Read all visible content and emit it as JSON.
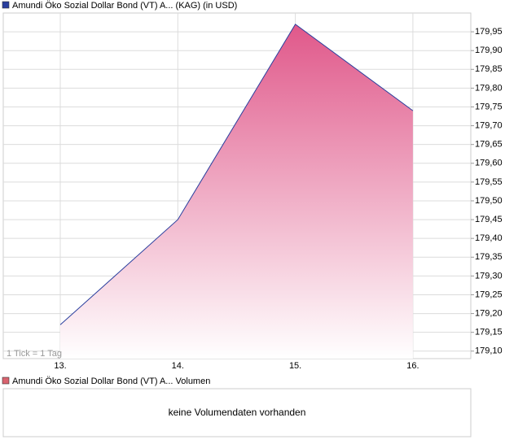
{
  "chart_data": {
    "type": "area",
    "legend": "Amundi Öko Sozial Dollar Bond (VT) A... (KAG) (in USD)",
    "legend_color": "#2a3f9e",
    "note": "1 Tick = 1 Tag",
    "categories": [
      "13.",
      "14.",
      "15.",
      "16."
    ],
    "series": [
      {
        "name": "Amundi Öko Sozial Dollar Bond (VT) A... (KAG) (in USD)",
        "color": "#2a3f9e",
        "fill": "#e0588a",
        "values": [
          179.17,
          179.45,
          179.97,
          179.74
        ]
      }
    ],
    "ylim": [
      179.08,
      180.0
    ],
    "yticks": [
      {
        "value": 179.1,
        "label": "179,10"
      },
      {
        "value": 179.15,
        "label": "179,15"
      },
      {
        "value": 179.2,
        "label": "179,20"
      },
      {
        "value": 179.25,
        "label": "179,25"
      },
      {
        "value": 179.3,
        "label": "179,30"
      },
      {
        "value": 179.35,
        "label": "179,35"
      },
      {
        "value": 179.4,
        "label": "179,40"
      },
      {
        "value": 179.45,
        "label": "179,45"
      },
      {
        "value": 179.5,
        "label": "179,50"
      },
      {
        "value": 179.55,
        "label": "179,55"
      },
      {
        "value": 179.6,
        "label": "179,60"
      },
      {
        "value": 179.65,
        "label": "179,65"
      },
      {
        "value": 179.7,
        "label": "179,70"
      },
      {
        "value": 179.75,
        "label": "179,75"
      },
      {
        "value": 179.8,
        "label": "179,80"
      },
      {
        "value": 179.85,
        "label": "179,85"
      },
      {
        "value": 179.9,
        "label": "179,90"
      },
      {
        "value": 179.95,
        "label": "179,95"
      }
    ],
    "grid": true
  },
  "volume": {
    "legend": "Amundi Öko Sozial Dollar Bond (VT) A... Volumen",
    "legend_color": "#d9636f",
    "message": "keine Volumendaten vorhanden"
  }
}
